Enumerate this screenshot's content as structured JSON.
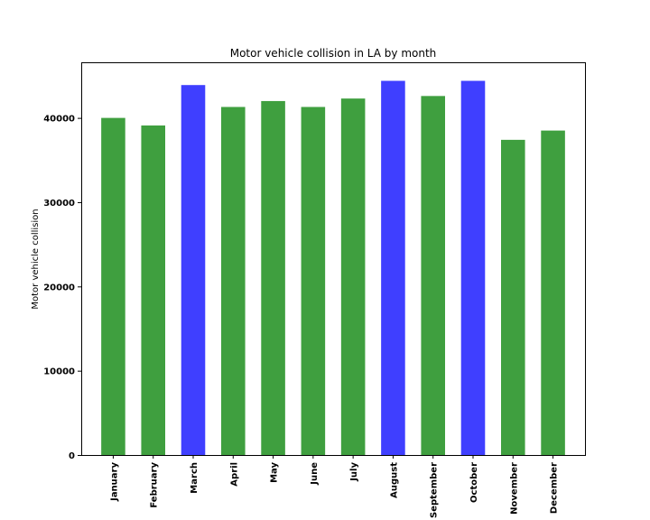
{
  "chart_data": {
    "type": "bar",
    "title": "Motor vehicle collision in LA by month",
    "xlabel": "",
    "ylabel": "Motor vehicle collision",
    "categories": [
      "January",
      "February",
      "March",
      "April",
      "May",
      "June",
      "July",
      "August",
      "September",
      "October",
      "November",
      "December"
    ],
    "values": [
      40000,
      39100,
      43900,
      41300,
      42000,
      41300,
      42300,
      44400,
      42600,
      44400,
      37400,
      38500
    ],
    "colors": [
      "#3f9f3f",
      "#3f9f3f",
      "#3f3fff",
      "#3f9f3f",
      "#3f9f3f",
      "#3f9f3f",
      "#3f9f3f",
      "#3f3fff",
      "#3f9f3f",
      "#3f3fff",
      "#3f9f3f",
      "#3f9f3f"
    ],
    "ylim": [
      0,
      46600
    ],
    "yticks": [
      0,
      10000,
      20000,
      30000,
      40000
    ],
    "ytick_labels": [
      "0",
      "10000",
      "20000",
      "30000",
      "40000"
    ],
    "grid": false,
    "legend": "none"
  }
}
